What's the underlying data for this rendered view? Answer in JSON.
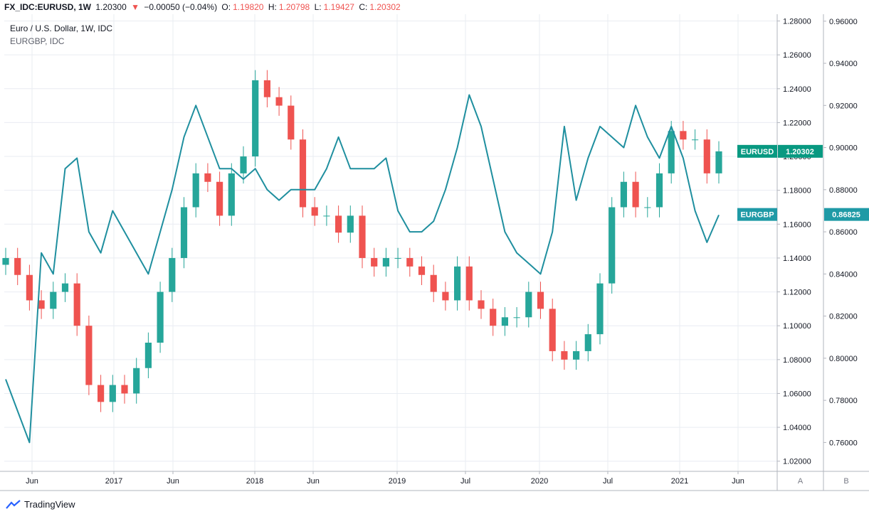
{
  "header": {
    "symbol": "FX_IDC:EURUSD, 1W",
    "price": "1.20300",
    "change_arrow": "▼",
    "change": "−0.00050 (−0.04%)",
    "o_label": "O:",
    "o_value": "1.19820",
    "h_label": "H:",
    "h_value": "1.20798",
    "l_label": "L:",
    "l_value": "1.19427",
    "c_label": "C:",
    "c_value": "1.20302"
  },
  "legend": {
    "main": "Euro / U.S. Dollar, 1W, IDC",
    "second": "EURGBP, IDC"
  },
  "footer": {
    "brand": "TradingView"
  },
  "colors": {
    "up": "#26a69a",
    "down": "#ef5350",
    "line": "#1f8f9f",
    "grid": "#e9ecf2",
    "axis_text": "#131722",
    "label_eurusd_bg": "#089981",
    "label_eurgbp_bg": "#1f9aa6"
  },
  "chart_data": {
    "type": "candlestick+line",
    "title": "Euro / U.S. Dollar, 1W, IDC",
    "x_ticks": [
      "Jun",
      "2017",
      "Jun",
      "2018",
      "Jun",
      "2019",
      "Jul",
      "2020",
      "Jul",
      "2021",
      "Jun"
    ],
    "y_left_axis_letter": "A",
    "y_right_axis_letter": "B",
    "scale_a": {
      "ticks": [
        "1.28000",
        "1.26000",
        "1.24000",
        "1.22000",
        "1.20000",
        "1.18000",
        "1.16000",
        "1.14000",
        "1.12000",
        "1.10000",
        "1.08000",
        "1.06000",
        "1.04000",
        "1.02000"
      ],
      "range": [
        1.014,
        1.284
      ]
    },
    "scale_b": {
      "ticks": [
        "0.96000",
        "0.94000",
        "0.92000",
        "0.90000",
        "0.88000",
        "0.86000",
        "0.84000",
        "0.82000",
        "0.80000",
        "0.78000",
        "0.76000"
      ],
      "range": [
        0.7463,
        0.9633
      ]
    },
    "series": [
      {
        "name": "EURUSD",
        "scale": "A",
        "last_value": "1.20302",
        "x": [
          "2016-04",
          "2016-05",
          "2016-06",
          "2016-07",
          "2016-08",
          "2016-09",
          "2016-10",
          "2016-11",
          "2016-12",
          "2017-01",
          "2017-02",
          "2017-03",
          "2017-04",
          "2017-05",
          "2017-06",
          "2017-07",
          "2017-08",
          "2017-09",
          "2017-10",
          "2017-11",
          "2017-12",
          "2018-01",
          "2018-02",
          "2018-03",
          "2018-04",
          "2018-05",
          "2018-06",
          "2018-07",
          "2018-08",
          "2018-09",
          "2018-10",
          "2018-11",
          "2018-12",
          "2019-01",
          "2019-02",
          "2019-03",
          "2019-04",
          "2019-05",
          "2019-06",
          "2019-07",
          "2019-08",
          "2019-09",
          "2019-10",
          "2019-11",
          "2019-12",
          "2020-01",
          "2020-02",
          "2020-03",
          "2020-04",
          "2020-05",
          "2020-06",
          "2020-07",
          "2020-08",
          "2020-09",
          "2020-10",
          "2020-11",
          "2020-12",
          "2021-01",
          "2021-02",
          "2021-03",
          "2021-04"
        ],
        "values": [
          1.14,
          1.13,
          1.115,
          1.11,
          1.12,
          1.125,
          1.1,
          1.065,
          1.055,
          1.065,
          1.06,
          1.075,
          1.09,
          1.12,
          1.14,
          1.17,
          1.19,
          1.185,
          1.165,
          1.19,
          1.2,
          1.245,
          1.235,
          1.23,
          1.21,
          1.17,
          1.165,
          1.165,
          1.155,
          1.165,
          1.14,
          1.135,
          1.14,
          1.14,
          1.135,
          1.13,
          1.12,
          1.115,
          1.135,
          1.115,
          1.11,
          1.1,
          1.105,
          1.105,
          1.12,
          1.11,
          1.085,
          1.08,
          1.085,
          1.095,
          1.125,
          1.17,
          1.185,
          1.17,
          1.17,
          1.19,
          1.215,
          1.21,
          1.21,
          1.19,
          1.203
        ]
      },
      {
        "name": "EURGBP",
        "scale": "B",
        "last_value": "0.86825",
        "x": [
          "2016-04",
          "2016-05",
          "2016-06",
          "2016-07",
          "2016-08",
          "2016-09",
          "2016-10",
          "2016-11",
          "2016-12",
          "2017-01",
          "2017-02",
          "2017-03",
          "2017-04",
          "2017-05",
          "2017-06",
          "2017-07",
          "2017-08",
          "2017-09",
          "2017-10",
          "2017-11",
          "2017-12",
          "2018-01",
          "2018-02",
          "2018-03",
          "2018-04",
          "2018-05",
          "2018-06",
          "2018-07",
          "2018-08",
          "2018-09",
          "2018-10",
          "2018-11",
          "2018-12",
          "2019-01",
          "2019-02",
          "2019-03",
          "2019-04",
          "2019-05",
          "2019-06",
          "2019-07",
          "2019-08",
          "2019-09",
          "2019-10",
          "2019-11",
          "2019-12",
          "2020-01",
          "2020-02",
          "2020-03",
          "2020-04",
          "2020-05",
          "2020-06",
          "2020-07",
          "2020-08",
          "2020-09",
          "2020-10",
          "2020-11",
          "2020-12",
          "2021-01",
          "2021-02",
          "2021-03",
          "2021-04"
        ],
        "values": [
          0.79,
          0.775,
          0.76,
          0.85,
          0.84,
          0.89,
          0.895,
          0.86,
          0.85,
          0.87,
          0.86,
          0.85,
          0.84,
          0.86,
          0.88,
          0.905,
          0.92,
          0.905,
          0.89,
          0.89,
          0.885,
          0.89,
          0.88,
          0.875,
          0.88,
          0.88,
          0.88,
          0.89,
          0.905,
          0.89,
          0.89,
          0.89,
          0.895,
          0.87,
          0.86,
          0.86,
          0.865,
          0.88,
          0.9,
          0.925,
          0.91,
          0.885,
          0.86,
          0.85,
          0.845,
          0.84,
          0.86,
          0.91,
          0.875,
          0.895,
          0.91,
          0.905,
          0.9,
          0.92,
          0.905,
          0.895,
          0.91,
          0.895,
          0.87,
          0.855,
          0.868
        ]
      }
    ],
    "grid": true
  }
}
